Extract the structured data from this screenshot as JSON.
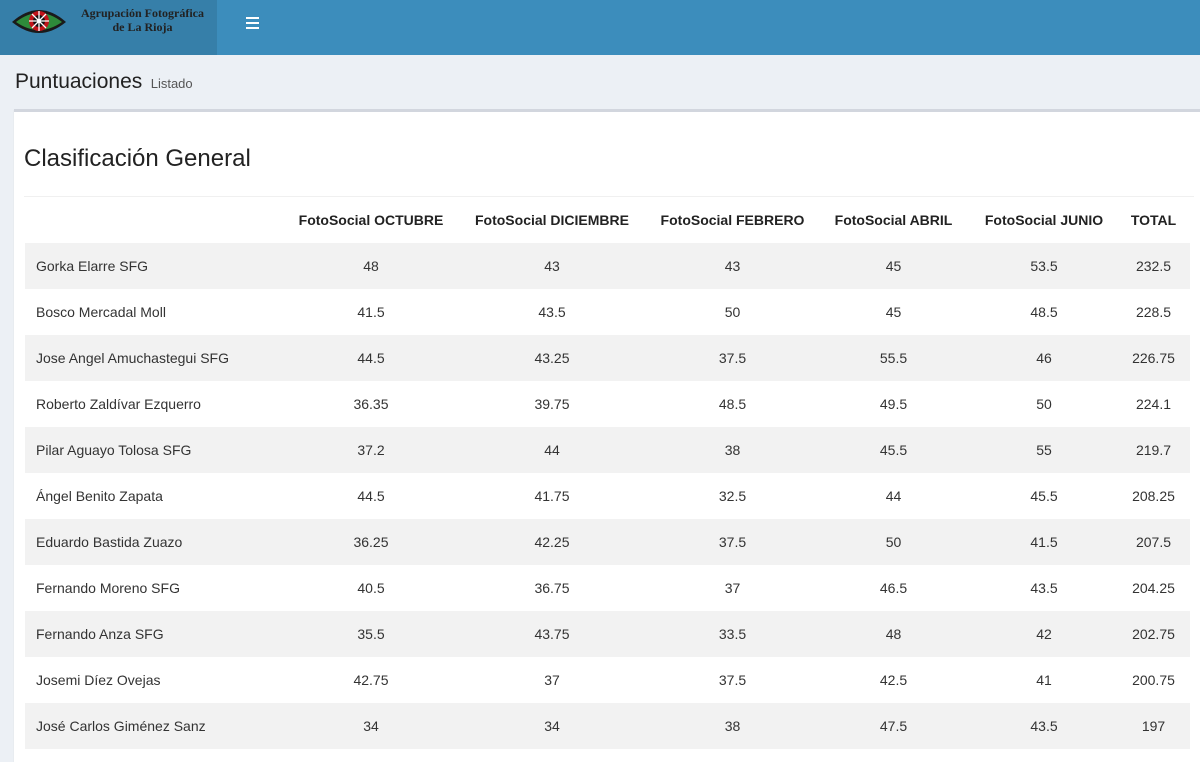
{
  "header": {
    "logo_line1": "Agrupación Fotográfica",
    "logo_line2": "de La Rioja",
    "menu_icon": "hamburger-menu-icon"
  },
  "page": {
    "title": "Puntuaciones",
    "subtitle": "Listado"
  },
  "panel": {
    "title": "Clasificación General"
  },
  "table": {
    "columns": [
      "",
      "FotoSocial OCTUBRE",
      "FotoSocial DICIEMBRE",
      "FotoSocial FEBRERO",
      "FotoSocial ABRIL",
      "FotoSocial JUNIO",
      "TOTAL"
    ],
    "rows": [
      [
        "Gorka Elarre SFG",
        "48",
        "43",
        "43",
        "45",
        "53.5",
        "232.5"
      ],
      [
        "Bosco Mercadal Moll",
        "41.5",
        "43.5",
        "50",
        "45",
        "48.5",
        "228.5"
      ],
      [
        "Jose Angel Amuchastegui SFG",
        "44.5",
        "43.25",
        "37.5",
        "55.5",
        "46",
        "226.75"
      ],
      [
        "Roberto Zaldívar Ezquerro",
        "36.35",
        "39.75",
        "48.5",
        "49.5",
        "50",
        "224.1"
      ],
      [
        "Pilar Aguayo Tolosa SFG",
        "37.2",
        "44",
        "38",
        "45.5",
        "55",
        "219.7"
      ],
      [
        "Ángel Benito Zapata",
        "44.5",
        "41.75",
        "32.5",
        "44",
        "45.5",
        "208.25"
      ],
      [
        "Eduardo Bastida Zuazo",
        "36.25",
        "42.25",
        "37.5",
        "50",
        "41.5",
        "207.5"
      ],
      [
        "Fernando Moreno SFG",
        "40.5",
        "36.75",
        "37",
        "46.5",
        "43.5",
        "204.25"
      ],
      [
        "Fernando Anza SFG",
        "35.5",
        "43.75",
        "33.5",
        "48",
        "42",
        "202.75"
      ],
      [
        "Josemi Díez Ovejas",
        "42.75",
        "37",
        "37.5",
        "42.5",
        "41",
        "200.75"
      ],
      [
        "José Carlos Giménez Sanz",
        "34",
        "34",
        "38",
        "47.5",
        "43.5",
        "197"
      ]
    ]
  }
}
